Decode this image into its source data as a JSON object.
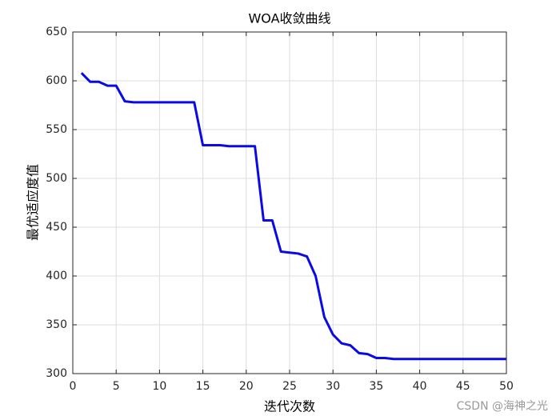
{
  "chart_data": {
    "type": "line",
    "title": "WOA收敛曲线",
    "x_label": "迭代次数",
    "y_label": "最优适应度值",
    "x": [
      1,
      2,
      3,
      4,
      5,
      6,
      7,
      8,
      9,
      10,
      11,
      12,
      13,
      14,
      15,
      16,
      17,
      18,
      19,
      20,
      21,
      22,
      23,
      24,
      25,
      26,
      27,
      28,
      29,
      30,
      31,
      32,
      33,
      34,
      35,
      36,
      37,
      38,
      39,
      40,
      41,
      42,
      43,
      44,
      45,
      46,
      47,
      48,
      49,
      50
    ],
    "series": [
      {
        "name": "WOA",
        "color": "#0a0ae6",
        "values": [
          608,
          599,
          599,
          595,
          595,
          579,
          578,
          578,
          578,
          578,
          578,
          578,
          578,
          578,
          534,
          534,
          534,
          533,
          533,
          533,
          533,
          457,
          457,
          425,
          424,
          423,
          420,
          400,
          358,
          340,
          331,
          329,
          321,
          320,
          316,
          316,
          315,
          315,
          315,
          315,
          315,
          315,
          315,
          315,
          315,
          315,
          315,
          315,
          315,
          315
        ]
      }
    ],
    "xlim": [
      0,
      50
    ],
    "xticks": [
      0,
      5,
      10,
      15,
      20,
      25,
      30,
      35,
      40,
      45,
      50
    ],
    "ylim": [
      300,
      650
    ],
    "yticks": [
      300,
      350,
      400,
      450,
      500,
      550,
      600,
      650
    ],
    "grid": true,
    "watermark": "CSDN @海神之光"
  }
}
